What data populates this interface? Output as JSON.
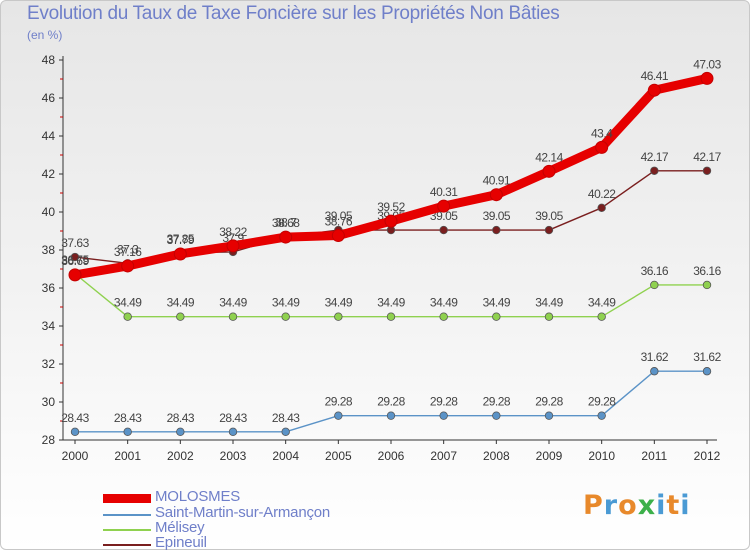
{
  "title": "Evolution du Taux de Taxe Foncière sur les Propriétés Non Bâties",
  "unit_label": "(en %)",
  "logo": {
    "letters": [
      "P",
      "r",
      "o",
      "x",
      "i",
      "t",
      "i"
    ],
    "colors": [
      "#e8892b",
      "#4a9ad4",
      "#e8892b",
      "#3cb04a",
      "#4a9ad4",
      "#e8892b",
      "#4a9ad4"
    ]
  },
  "chart_data": {
    "type": "line",
    "title": "Evolution du Taux de Taxe Foncière sur les Propriétés Non Bâties",
    "ylabel": "(en %)",
    "xlabel": "",
    "ylim": [
      28,
      48
    ],
    "yticks": [
      "28",
      "30",
      "32",
      "34",
      "36",
      "38",
      "40",
      "42",
      "44",
      "46",
      "48"
    ],
    "categories": [
      "2000",
      "2001",
      "2002",
      "2003",
      "2004",
      "2005",
      "2006",
      "2007",
      "2008",
      "2009",
      "2010",
      "2011",
      "2012"
    ],
    "series": [
      {
        "name": "MOLOSMES",
        "color": "#e60000",
        "values": [
          36.69,
          37.16,
          37.79,
          38.22,
          38.68,
          38.76,
          39.52,
          40.31,
          40.91,
          42.14,
          43.4,
          46.41,
          47.03
        ],
        "labels": [
          "36.69",
          "37.16",
          "37.79",
          "38.22",
          "38.68",
          "38.76",
          "39.52",
          "40.31",
          "40.91",
          "42.14",
          "43.4",
          "46.41",
          "47.03"
        ]
      },
      {
        "name": "Saint-Martin-sur-Armançon",
        "color": "#5b93c7",
        "values": [
          28.43,
          28.43,
          28.43,
          28.43,
          28.43,
          29.28,
          29.28,
          29.28,
          29.28,
          29.28,
          29.28,
          31.62,
          31.62
        ],
        "labels": [
          "28.43",
          "28.43",
          "28.43",
          "28.43",
          "28.43",
          "29.28",
          "29.28",
          "29.28",
          "29.28",
          "29.28",
          "29.28",
          "31.62",
          "31.62"
        ]
      },
      {
        "name": "Mélisey",
        "color": "#8fd14f",
        "values": [
          36.75,
          34.49,
          34.49,
          34.49,
          34.49,
          34.49,
          34.49,
          34.49,
          34.49,
          34.49,
          34.49,
          36.16,
          36.16
        ],
        "labels": [
          "36.75",
          "34.49",
          "34.49",
          "34.49",
          "34.49",
          "34.49",
          "34.49",
          "34.49",
          "34.49",
          "34.49",
          "34.49",
          "36.16",
          "36.16"
        ]
      },
      {
        "name": "Epineuil",
        "color": "#7a1f1f",
        "values": [
          37.63,
          37.3,
          37.85,
          37.9,
          38.7,
          39.05,
          39.05,
          39.05,
          39.05,
          39.05,
          40.22,
          42.17,
          42.17
        ],
        "labels": [
          "37.63",
          "37.3",
          "37.85",
          "37.9",
          "38.7",
          "39.05",
          "39.05",
          "39.05",
          "39.05",
          "39.05",
          "40.22",
          "42.17",
          "42.17"
        ]
      }
    ],
    "grid": false,
    "legend_position": "bottom-left"
  }
}
